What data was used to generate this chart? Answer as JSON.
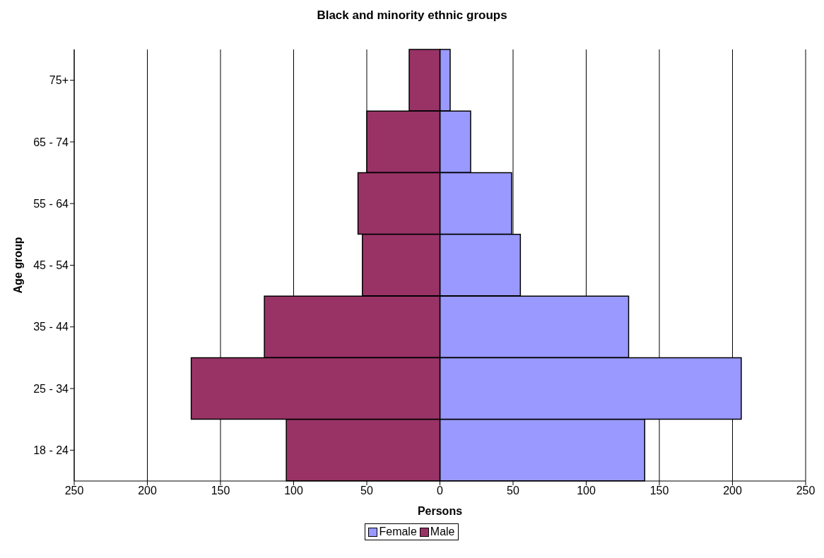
{
  "chart_data": {
    "type": "bar",
    "orientation": "horizontal",
    "stacked": true,
    "title": "Black and minority ethnic groups",
    "xlabel": "Persons",
    "ylabel": "Age group",
    "categories": [
      "75+",
      "65 - 74",
      "55 - 64",
      "45 - 54",
      "35 - 44",
      "25 - 34",
      "18 - 24"
    ],
    "series": [
      {
        "name": "Female",
        "color": "#9999ff",
        "values": [
          7,
          21,
          49,
          55,
          129,
          206,
          140
        ]
      },
      {
        "name": "Male",
        "color": "#993366",
        "values": [
          -21,
          -50,
          -56,
          -53,
          -120,
          -170,
          -105
        ]
      }
    ],
    "xlim": [
      -250,
      250
    ],
    "xticks": [
      {
        "value": -250,
        "label": "250"
      },
      {
        "value": -200,
        "label": "200"
      },
      {
        "value": -150,
        "label": "150"
      },
      {
        "value": -100,
        "label": "100"
      },
      {
        "value": -50,
        "label": "50"
      },
      0,
      50,
      100,
      150,
      200,
      250
    ],
    "grid": "x",
    "legend": "bottom"
  }
}
